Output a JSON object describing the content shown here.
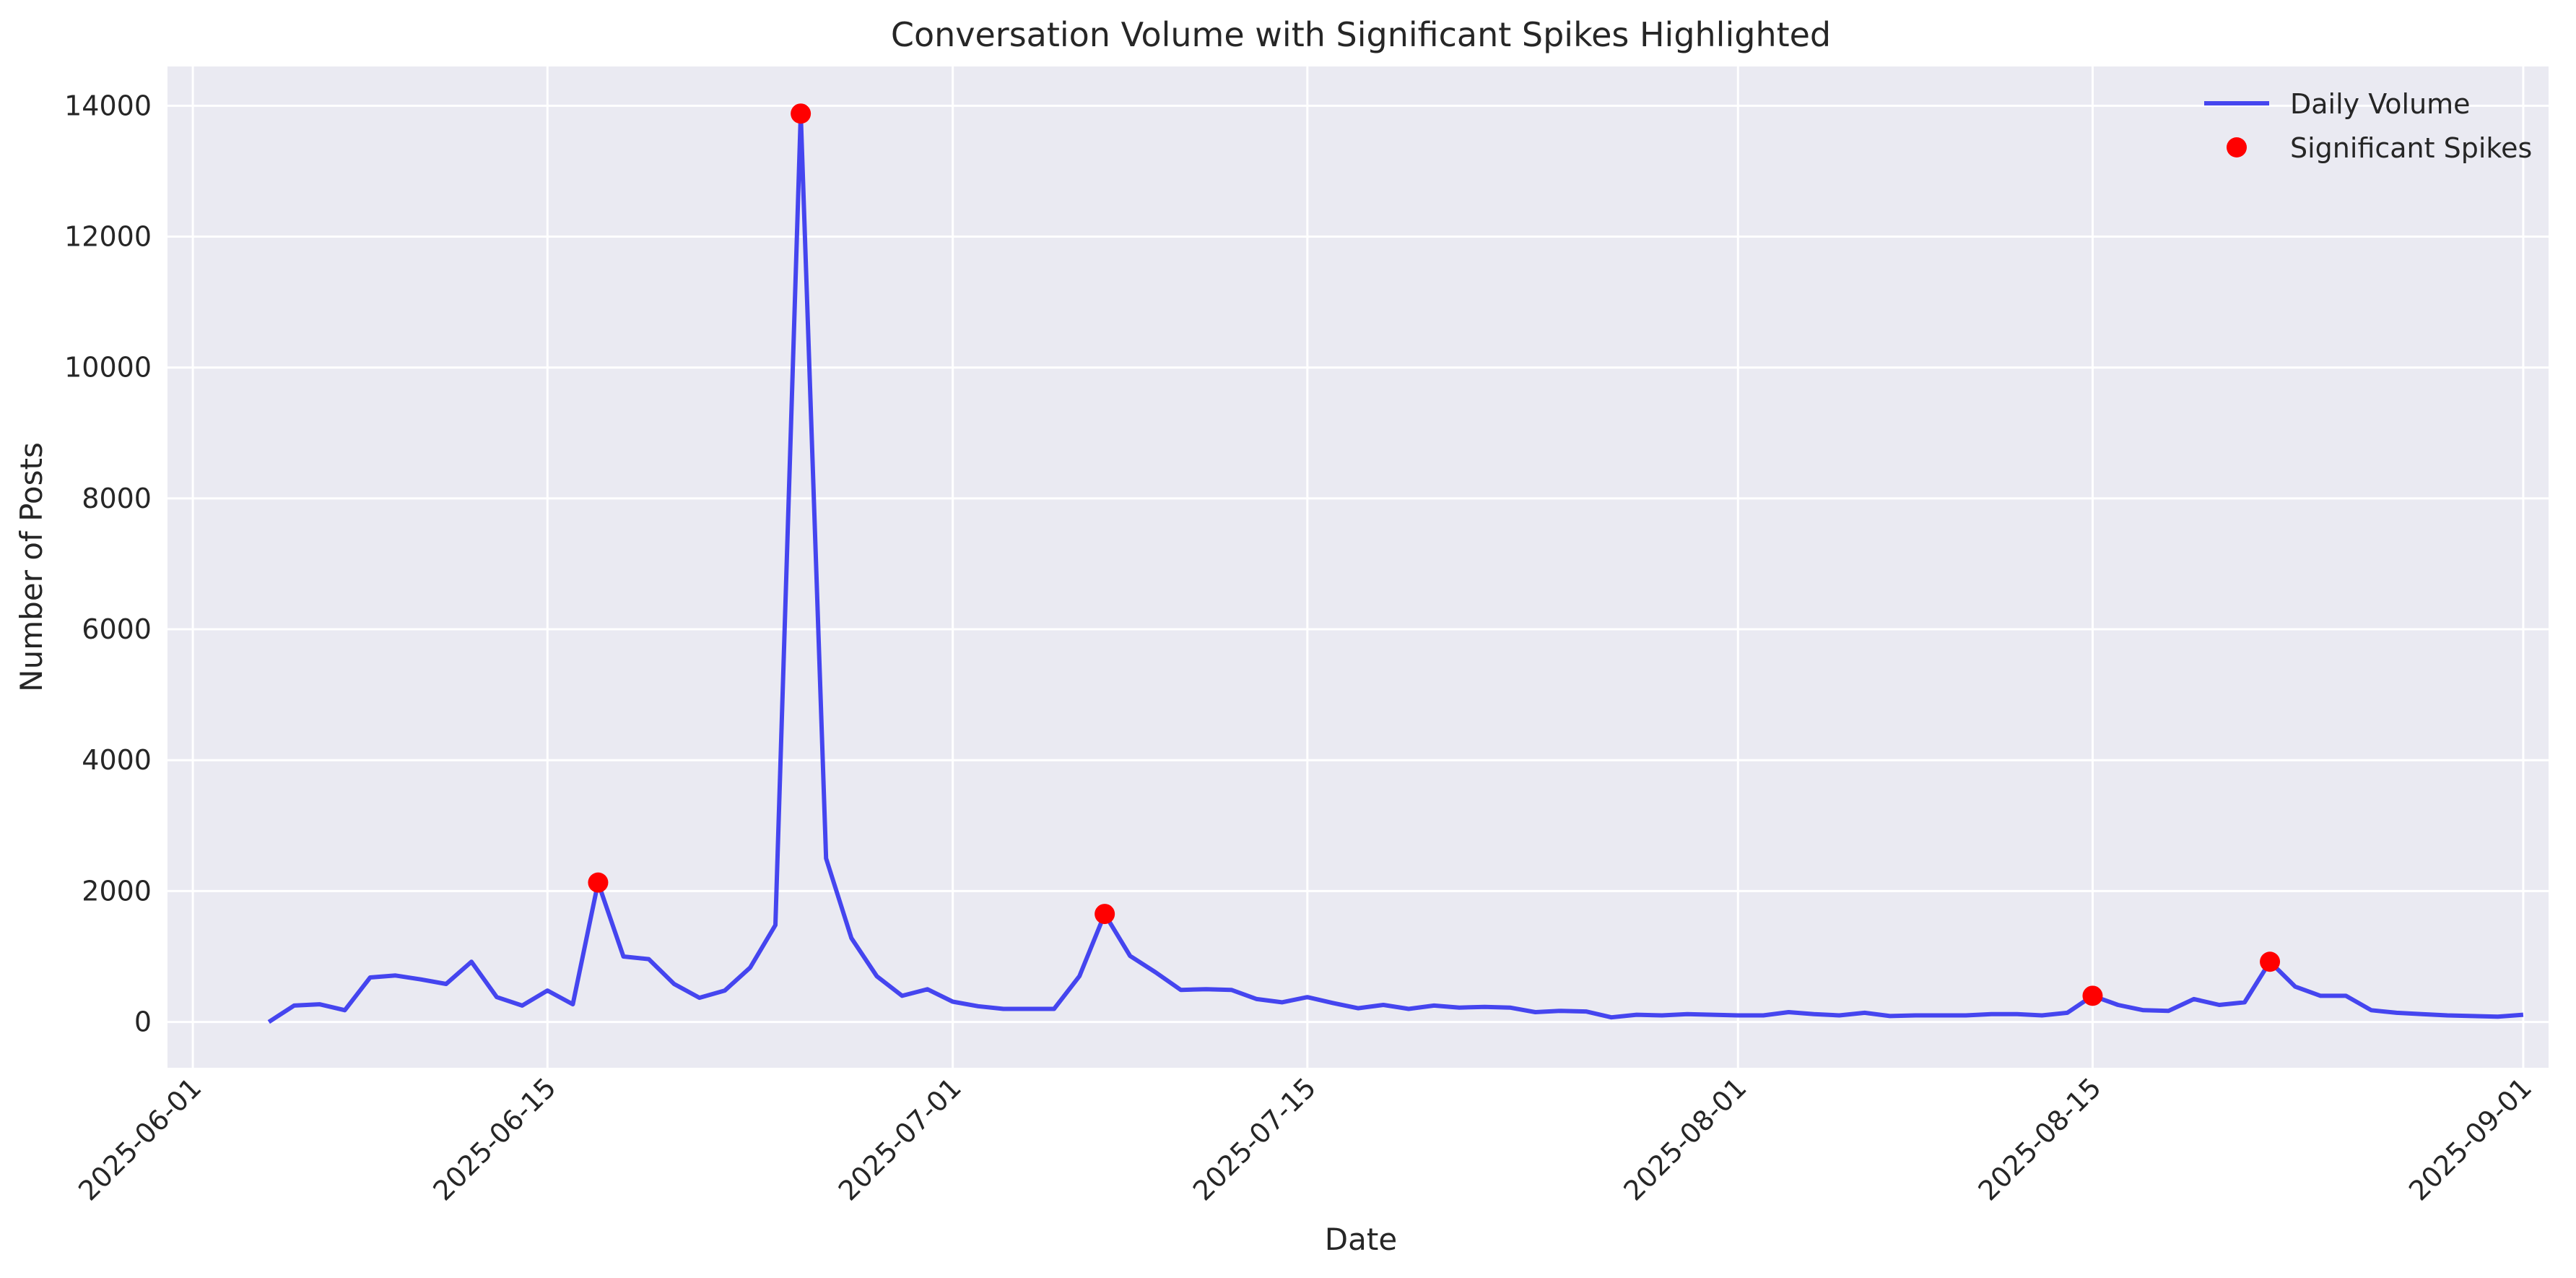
{
  "chart_data": {
    "type": "line",
    "title": "Conversation Volume with Significant Spikes Highlighted",
    "xlabel": "Date",
    "ylabel": "Number of Posts",
    "x_range": [
      "2025-05-31",
      "2025-09-02"
    ],
    "ylim": [
      -700,
      14600
    ],
    "x_ticks": [
      "2025-06-01",
      "2025-06-15",
      "2025-07-01",
      "2025-07-15",
      "2025-08-01",
      "2025-08-15",
      "2025-09-01"
    ],
    "y_ticks": [
      0,
      2000,
      4000,
      6000,
      8000,
      10000,
      12000,
      14000
    ],
    "grid": true,
    "legend_position": "top-right",
    "colors": {
      "line": "#3333ee",
      "spike": "#ff0000",
      "background": "#eaeaf2",
      "grid": "#ffffff"
    },
    "series": [
      {
        "name": "Daily Volume",
        "start_date": "2025-06-04",
        "values": [
          0,
          250,
          270,
          180,
          680,
          710,
          650,
          580,
          920,
          380,
          250,
          480,
          270,
          2130,
          1000,
          960,
          580,
          370,
          480,
          830,
          1480,
          13880,
          2500,
          1280,
          700,
          400,
          500,
          310,
          240,
          200,
          200,
          200,
          700,
          1650,
          1010,
          760,
          490,
          500,
          490,
          350,
          300,
          380,
          290,
          210,
          260,
          200,
          250,
          220,
          230,
          220,
          150,
          170,
          160,
          70,
          110,
          100,
          120,
          110,
          100,
          100,
          150,
          120,
          100,
          140,
          90,
          100,
          100,
          100,
          120,
          120,
          100,
          140,
          400,
          260,
          180,
          170,
          350,
          260,
          300,
          920,
          540,
          400,
          400,
          180,
          140,
          120,
          100,
          90,
          80,
          110
        ]
      },
      {
        "name": "Significant Spikes",
        "points": [
          {
            "date": "2025-06-17",
            "value": 2130
          },
          {
            "date": "2025-06-25",
            "value": 13880
          },
          {
            "date": "2025-07-07",
            "value": 1650
          },
          {
            "date": "2025-08-15",
            "value": 400
          },
          {
            "date": "2025-08-22",
            "value": 920
          }
        ]
      }
    ]
  }
}
